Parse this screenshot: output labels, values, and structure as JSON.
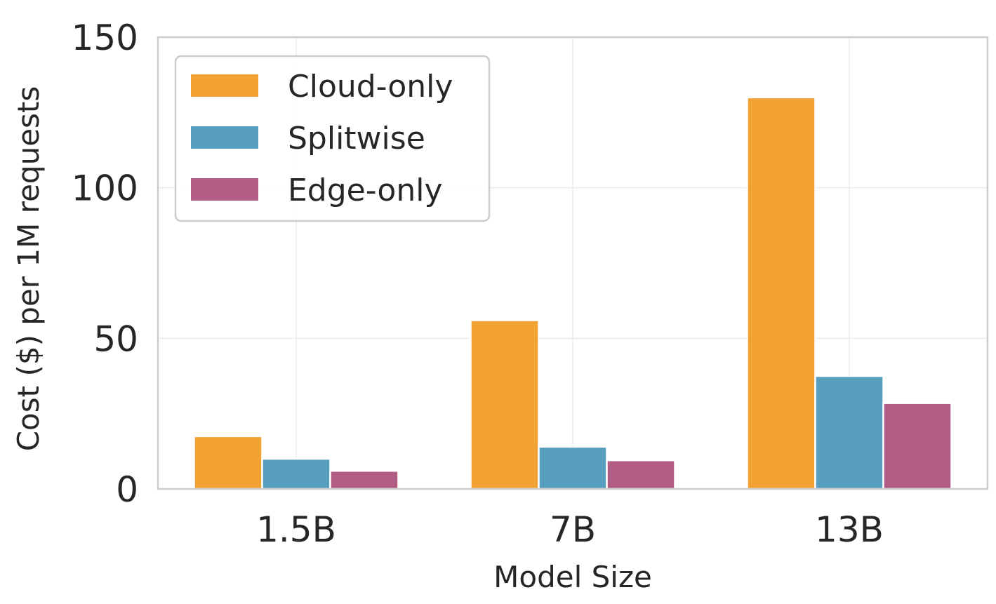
{
  "chart_data": {
    "type": "bar",
    "title": "",
    "xlabel": "Model Size",
    "ylabel": "Cost ($) per 1M requests",
    "categories": [
      "1.5B",
      "7B",
      "13B"
    ],
    "series": [
      {
        "name": "Cloud-only",
        "color": "#f0900f",
        "values": [
          17.5,
          56,
          130
        ]
      },
      {
        "name": "Splitwise",
        "color": "#3b8db4",
        "values": [
          10,
          14,
          37.5
        ]
      },
      {
        "name": "Edge-only",
        "color": "#a4426f",
        "values": [
          6,
          9.5,
          28.5
        ]
      }
    ],
    "ylim": [
      0,
      150
    ],
    "yticks": [
      "0",
      "50",
      "100",
      "150"
    ],
    "grid": true,
    "legend_position": "top-left"
  }
}
